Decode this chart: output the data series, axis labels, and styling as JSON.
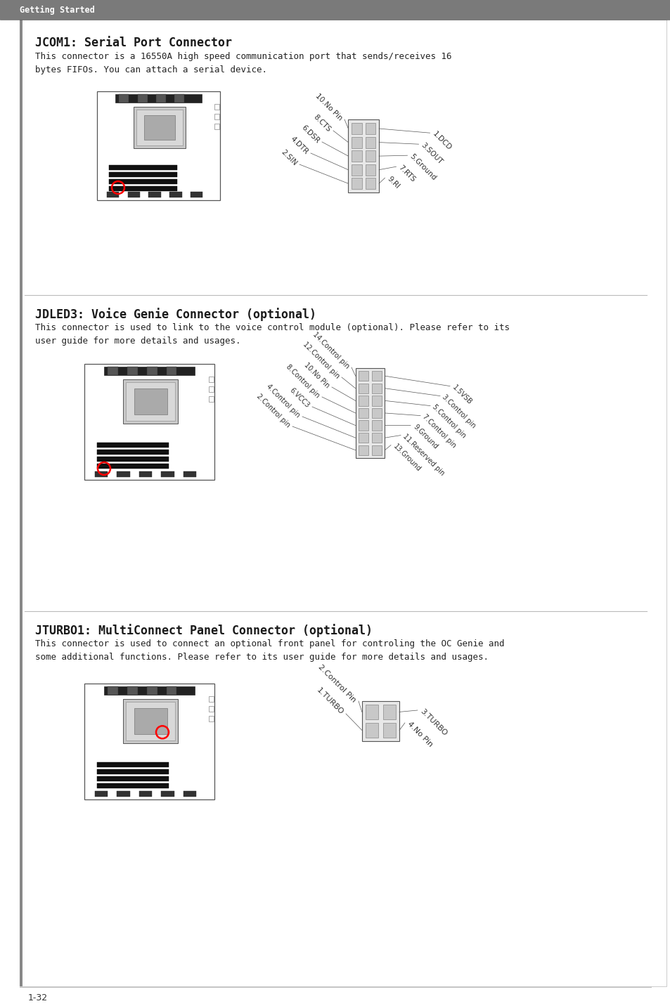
{
  "page_bg": "#ffffff",
  "header_bg": "#7a7a7a",
  "header_text": "Getting Started",
  "header_text_color": "#ffffff",
  "footer_text": "1-32",
  "section1_title": "JCOM1: Serial Port Connector",
  "section1_body": "This connector is a 16550A high speed communication port that sends/receives 16\nbytes FIFOs. You can attach a serial device.",
  "section1_left_labels": [
    "10.No Pin",
    "8.CTS",
    "6.DSR",
    "4.DTR",
    "2.SIN"
  ],
  "section1_right_labels": [
    "9.RI",
    "7.RTS",
    "5.Ground",
    "3.SOUT",
    "1.DCD"
  ],
  "section2_title": "JDLED3: Voice Genie Connector (optional)",
  "section2_body": "This connector is used to link to the voice control module (optional). Please refer to its\nuser guide for more details and usages.",
  "section2_left_labels": [
    "14.Control pin",
    "12.Control pin",
    "10.No Pin",
    "8.Control pin",
    "6.VCC3",
    "4.Control pin",
    "2.Control pin"
  ],
  "section2_right_labels": [
    "13.Ground",
    "11.Reserved pin",
    "9.Ground",
    "7.Control pin",
    "5.Control pin",
    "3.Control pin",
    "1.5VSB"
  ],
  "section3_title": "JTURBO1: MultiConnect Panel Connector (optional)",
  "section3_body": "This connector is used to connect an optional front panel for controling the OC Genie and\nsome additional functions. Please refer to its user guide for more details and usages.",
  "section3_left_labels": [
    "2.Control Pin",
    "1.TURBO"
  ],
  "section3_right_labels": [
    "4.No Pin",
    "3.TURBO"
  ],
  "title_color": "#1a1a1a",
  "body_color": "#222222",
  "label_color": "#333333",
  "separator_color": "#bbbbbb"
}
